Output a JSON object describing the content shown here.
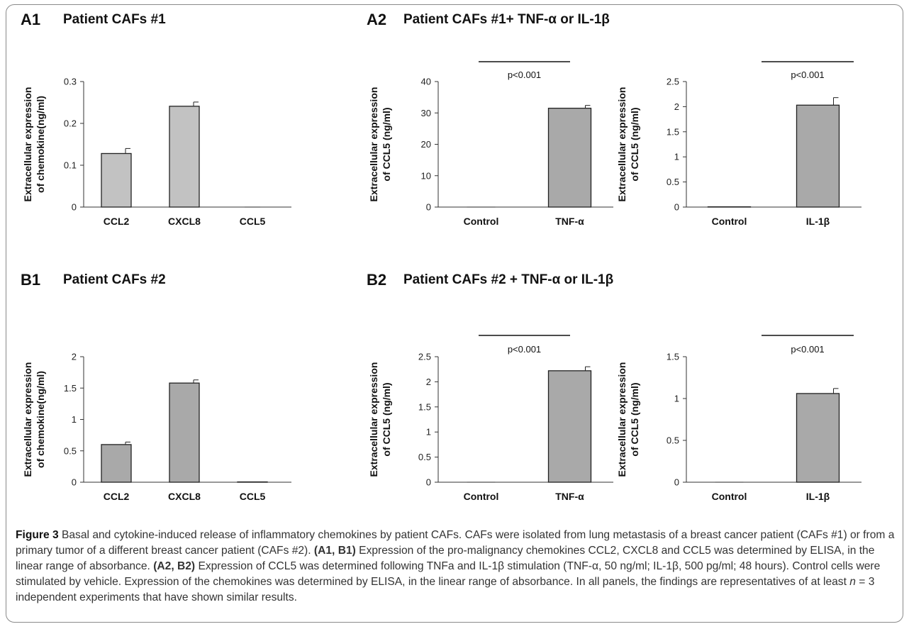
{
  "panels": {
    "A1": {
      "letter": "A1",
      "title": "Patient CAFs #1"
    },
    "A2": {
      "letter": "A2",
      "title": "Patient CAFs #1+ TNF-α  or IL-1β"
    },
    "B1": {
      "letter": "B1",
      "title": "Patient CAFs #2"
    },
    "B2": {
      "letter": "B2",
      "title": "Patient CAFs #2 + TNF-α  or IL-1β"
    }
  },
  "chart_data": [
    {
      "id": "A1",
      "type": "bar",
      "categories": [
        "CCL2",
        "CXCL8",
        "CCL5"
      ],
      "values": [
        0.128,
        0.241,
        0.0
      ],
      "errors": [
        0.012,
        0.01,
        0.0
      ],
      "ylabel_lines": [
        "Extracellular expression",
        "of chemokine(ng/ml)"
      ],
      "ylim": [
        0,
        0.3
      ],
      "yticks": [
        0,
        0.1,
        0.2,
        0.3
      ],
      "ytick_labels": [
        "0",
        "0.1",
        "0.2",
        "0.3"
      ],
      "bar_color": "#c2c2c2"
    },
    {
      "id": "A2-TNF",
      "type": "bar",
      "categories": [
        "Control",
        "TNF-α"
      ],
      "values": [
        0.0,
        31.5
      ],
      "errors": [
        0.0,
        0.9
      ],
      "ylabel_lines": [
        "Extracellular expression",
        "of CCL5 (ng/ml)"
      ],
      "ylim": [
        0,
        40
      ],
      "yticks": [
        0,
        10,
        20,
        30,
        40
      ],
      "ytick_labels": [
        "0",
        "10",
        "20",
        "30",
        "40"
      ],
      "annotation": "p<0.001",
      "bar_color": "#a9a9a9"
    },
    {
      "id": "A2-IL1",
      "type": "bar",
      "categories": [
        "Control",
        "IL-1β"
      ],
      "values": [
        0.005,
        2.03
      ],
      "errors": [
        0.0,
        0.15
      ],
      "ylabel_lines": [
        "Extracellular expression",
        "of CCL5 (ng/ml)"
      ],
      "ylim": [
        0,
        2.5
      ],
      "yticks": [
        0,
        0.5,
        1,
        1.5,
        2,
        2.5
      ],
      "ytick_labels": [
        "0",
        "0.5",
        "1",
        "1.5",
        "2",
        "2.5"
      ],
      "annotation": "p<0.001",
      "bar_color": "#a9a9a9"
    },
    {
      "id": "B1",
      "type": "bar",
      "categories": [
        "CCL2",
        "CXCL8",
        "CCL5"
      ],
      "values": [
        0.6,
        1.58,
        0.005
      ],
      "errors": [
        0.04,
        0.05,
        0.0
      ],
      "ylabel_lines": [
        "Extracellular expression",
        "of chemokine(ng/ml)"
      ],
      "ylim": [
        0,
        2
      ],
      "yticks": [
        0,
        0.5,
        1,
        1.5,
        2
      ],
      "ytick_labels": [
        "0",
        "0.5",
        "1",
        "1.5",
        "2"
      ],
      "bar_color": "#a9a9a9"
    },
    {
      "id": "B2-TNF",
      "type": "bar",
      "categories": [
        "Control",
        "TNF-α"
      ],
      "values": [
        0.0,
        2.22
      ],
      "errors": [
        0.0,
        0.08
      ],
      "ylabel_lines": [
        "Extracellular expression",
        "of CCL5 (ng/ml)"
      ],
      "ylim": [
        0,
        2.5
      ],
      "yticks": [
        0,
        0.5,
        1,
        1.5,
        2,
        2.5
      ],
      "ytick_labels": [
        "0",
        "0.5",
        "1",
        "1.5",
        "2",
        "2.5"
      ],
      "annotation": "p<0.001",
      "bar_color": "#a9a9a9"
    },
    {
      "id": "B2-IL1",
      "type": "bar",
      "categories": [
        "Control",
        "IL-1β"
      ],
      "values": [
        0.0,
        1.06
      ],
      "errors": [
        0.0,
        0.06
      ],
      "ylabel_lines": [
        "Extracellular expression",
        "of CCL5 (ng/ml)"
      ],
      "ylim": [
        0,
        1.5
      ],
      "yticks": [
        0,
        0.5,
        1,
        1.5
      ],
      "ytick_labels": [
        "0",
        "0.5",
        "1",
        "1.5"
      ],
      "annotation": "p<0.001",
      "bar_color": "#a9a9a9"
    }
  ],
  "caption": {
    "figure_label": "Figure 3",
    "s1": " Basal and cytokine-induced release of inflammatory chemokines by patient CAFs. CAFs were isolated from lung metastasis of a breast cancer patient (CAFs #1) or from a primary tumor of a different breast cancer patient (CAFs #2). ",
    "label_ab1": "(A1, B1)",
    "s2": " Expression of the pro-malignancy chemokines CCL2, CXCL8 and CCL5 was determined by ELISA, in the linear range of absorbance. ",
    "label_ab2": "(A2, B2)",
    "s3": " Expression of CCL5 was determined following TNFa and IL-1β stimulation (TNF-α, 50 ng/ml; IL-1β, 500 pg/ml; 48 hours). Control cells were stimulated by vehicle. Expression of the chemokines was determined by ELISA, in the linear range of absorbance. In all panels, the findings are representatives of at least ",
    "n_var": "n",
    "s4": " = 3 independent experiments that have shown similar results."
  }
}
